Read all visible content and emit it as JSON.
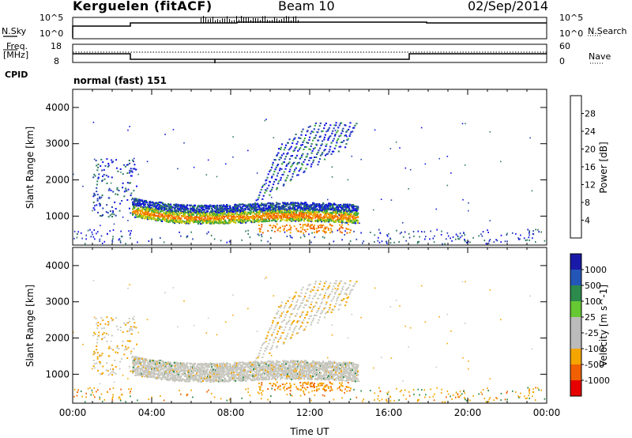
{
  "header": {
    "station": "Kerguelen (fitACF)",
    "beam": "Beam 10",
    "date": "02/Sep/2014"
  },
  "strip_labels": {
    "nsky": "N.Sky",
    "nsearch": "N.Search",
    "freq": "Freq.",
    "freq_unit": "[MHz]",
    "nave": "Nave",
    "cpid": "CPID",
    "mode_text": "normal (fast) 151",
    "nsky_ticks": [
      "10^5",
      "10^0"
    ],
    "nsearch_ticks": [
      "10^5",
      "10^0"
    ],
    "freq_ticks": [
      "18",
      "8"
    ],
    "nave_ticks": [
      "60",
      "0"
    ]
  },
  "colors": {
    "power_scale": [
      "#1010e6",
      "#2440b0",
      "#2c7a5c",
      "#3fa93f",
      "#c8c800",
      "#f5a500",
      "#f06000",
      "#e60000"
    ],
    "velocity_scale": [
      "#1a1aa8",
      "#2456b8",
      "#2c8a4c",
      "#66c833",
      "#bbbbbb",
      "#bbbbbb",
      "#f5a500",
      "#f06000",
      "#e60000"
    ],
    "ground_scatter": "#c8c8c0"
  },
  "chart_data": [
    {
      "type": "heatmap",
      "name": "power-panel",
      "ylabel": "Slant Range [km]",
      "yticks": [
        "1000",
        "2000",
        "3000",
        "4000"
      ],
      "ylim": [
        200,
        4500
      ],
      "xlim": [
        0,
        24
      ],
      "colorbar_label": "Power [dB]",
      "colorbar_ticks": [
        "4",
        "8",
        "12",
        "16",
        "20",
        "24",
        "28"
      ],
      "colorbar_range": [
        0,
        32
      ]
    },
    {
      "type": "heatmap",
      "name": "velocity-panel",
      "ylabel": "Slant Range [km]",
      "yticks": [
        "1000",
        "2000",
        "3000",
        "4000"
      ],
      "ylim": [
        200,
        4500
      ],
      "xlim": [
        0,
        24
      ],
      "colorbar_label": "Velocity [m s^-1]",
      "colorbar_ticks": [
        "1000",
        "500",
        "100",
        "25",
        "-25",
        "-100",
        "-500",
        "-1000"
      ],
      "xlabel": "Time UT",
      "xticks": [
        "00:00",
        "04:00",
        "08:00",
        "12:00",
        "16:00",
        "20:00",
        "00:00"
      ]
    }
  ]
}
